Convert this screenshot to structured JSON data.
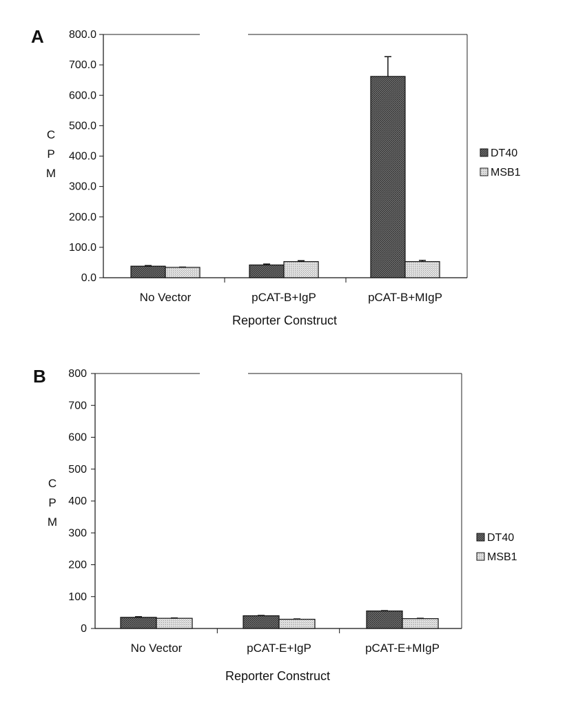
{
  "chart_data": [
    {
      "panel": "A",
      "type": "bar",
      "categories": [
        "No Vector",
        "pCAT-B+IgP",
        "pCAT-B+MIgP"
      ],
      "series": [
        {
          "name": "DT40",
          "values": [
            38,
            42,
            662
          ],
          "errors": [
            2,
            3,
            65
          ]
        },
        {
          "name": "MSB1",
          "values": [
            34,
            53,
            53
          ],
          "errors": [
            1,
            3,
            4
          ]
        }
      ],
      "xlabel": "Reporter Construct",
      "ylabel": [
        "C",
        "P",
        "M"
      ],
      "ylim": [
        0,
        800
      ],
      "yticks": [
        "0.0",
        "100.0",
        "200.0",
        "300.0",
        "400.0",
        "500.0",
        "600.0",
        "700.0",
        "800.0"
      ],
      "legend": "right",
      "grid": false,
      "colors": {
        "DT40": "#5a5a5a",
        "MSB1": "#cfcfcf"
      }
    },
    {
      "panel": "B",
      "type": "bar",
      "categories": [
        "No Vector",
        "pCAT-E+IgP",
        "pCAT-E+MIgP"
      ],
      "series": [
        {
          "name": "DT40",
          "values": [
            35,
            40,
            55
          ],
          "errors": [
            2,
            1,
            1
          ]
        },
        {
          "name": "MSB1",
          "values": [
            32,
            29,
            31
          ],
          "errors": [
            1,
            1,
            1
          ]
        }
      ],
      "xlabel": "Reporter Construct",
      "ylabel": [
        "C",
        "P",
        "M"
      ],
      "ylim": [
        0,
        800
      ],
      "yticks": [
        "0",
        "100",
        "200",
        "300",
        "400",
        "500",
        "600",
        "700",
        "800"
      ],
      "legend": "right",
      "grid": false,
      "colors": {
        "DT40": "#5a5a5a",
        "MSB1": "#cfcfcf"
      }
    }
  ]
}
